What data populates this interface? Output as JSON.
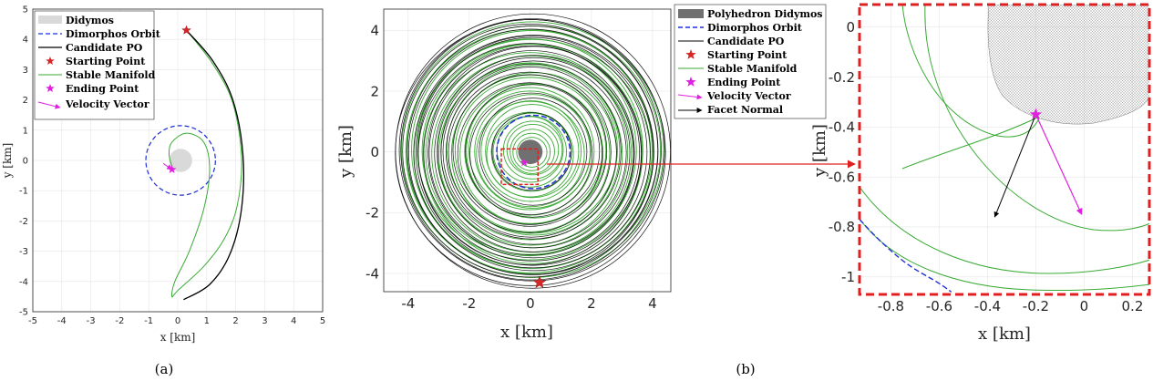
{
  "colors": {
    "didymos": "#d9d9d9",
    "polyhedron": "#707070",
    "dimorphos_orbit": "#1f2fd8",
    "candidate_po": "#000000",
    "starting_point": "#d62728",
    "stable_manifold": "#3aaa35",
    "ending_point": "#e020e0",
    "velocity_vector": "#e020e0",
    "facet_normal": "#000000",
    "zoom_box": "#e02020"
  },
  "captions": {
    "a": "(a)",
    "b": "(b)"
  },
  "chart_data": [
    {
      "type": "line",
      "panel": "a",
      "xlabel": "x [km]",
      "ylabel": "y [km]",
      "xlim": [
        -5,
        5
      ],
      "ylim": [
        -5,
        5
      ],
      "xticks": [
        -5,
        -4,
        -3,
        -2,
        -1,
        0,
        1,
        2,
        3,
        4,
        5
      ],
      "yticks": [
        -5,
        -4,
        -3,
        -2,
        -1,
        0,
        1,
        2,
        3,
        4,
        5
      ],
      "grid": true,
      "legend_position": "top-left",
      "legend": [
        "Didymos",
        "Dimorphos Orbit",
        "Candidate PO",
        "Starting Point",
        "Stable Manifold",
        "Ending Point",
        "Velocity Vector"
      ],
      "didymos": {
        "center": [
          0.1,
          0.0
        ],
        "radius": 0.4
      },
      "dimorphos_orbit": {
        "center": [
          0.1,
          0.0
        ],
        "radius": 1.2
      },
      "candidate_po": [
        [
          0.3,
          4.3
        ],
        [
          1.2,
          3.3
        ],
        [
          1.9,
          2.0
        ],
        [
          2.25,
          0.2
        ],
        [
          2.2,
          -1.6
        ],
        [
          1.8,
          -3.1
        ],
        [
          1.1,
          -4.1
        ],
        [
          0.2,
          -4.6
        ]
      ],
      "stable_manifold": [
        [
          0.3,
          4.3
        ],
        [
          1.2,
          3.2
        ],
        [
          1.9,
          1.9
        ],
        [
          2.2,
          0.1
        ],
        [
          2.05,
          -1.5
        ],
        [
          1.6,
          -2.6
        ],
        [
          0.9,
          -3.5
        ],
        [
          0.0,
          -4.3
        ],
        [
          -0.2,
          -4.5
        ],
        [
          -0.1,
          -4.0
        ],
        [
          0.4,
          -3.0
        ],
        [
          0.9,
          -1.6
        ],
        [
          1.1,
          -0.3
        ],
        [
          0.9,
          0.6
        ],
        [
          0.3,
          0.9
        ],
        [
          -0.2,
          0.6
        ],
        [
          -0.3,
          0.2
        ],
        [
          -0.2,
          -0.2
        ],
        [
          -0.2,
          -0.3
        ]
      ],
      "starting_point": [
        0.3,
        4.3
      ],
      "ending_point": [
        -0.2,
        -0.3
      ],
      "velocity_vector": {
        "from": [
          -0.5,
          -0.1
        ],
        "to": [
          -0.2,
          -0.3
        ]
      }
    },
    {
      "type": "line",
      "panel": "b",
      "xlabel": "x [km]",
      "ylabel": "y [km]",
      "xlim": [
        -4.8,
        4.6
      ],
      "ylim": [
        -4.6,
        4.7
      ],
      "xticks": [
        -4,
        -2,
        0,
        2,
        4
      ],
      "yticks": [
        -4,
        -2,
        0,
        2,
        4
      ],
      "grid": true,
      "legend_position": "top-right",
      "legend": [
        "Polyhedron Didymos",
        "Dimorphos Orbit",
        "Candidate PO",
        "Starting Point",
        "Stable Manifold",
        "Ending Point",
        "Velocity Vector",
        "Facet Normal"
      ],
      "didymos": {
        "center": [
          0.0,
          0.0
        ],
        "radius": 0.4
      },
      "dimorphos_orbit": {
        "center": [
          0.1,
          0.0
        ],
        "radius": 1.2
      },
      "candidate_po_radius_range": [
        1.3,
        4.5
      ],
      "stable_manifold_radius_range": [
        0.5,
        4.3
      ],
      "starting_point": [
        0.3,
        -4.3
      ],
      "ending_point": [
        -0.2,
        -0.35
      ],
      "zoom_box": {
        "x": [
          -0.95,
          0.25
        ],
        "y": [
          -1.07,
          0.1
        ]
      }
    },
    {
      "type": "line",
      "panel": "b-zoom",
      "xlabel": "x [km]",
      "ylabel": "y [km]",
      "xlim": [
        -0.93,
        0.27
      ],
      "ylim": [
        -1.07,
        0.09
      ],
      "xticks": [
        -0.8,
        -0.6,
        -0.4,
        -0.2,
        0,
        0.2
      ],
      "yticks": [
        -1,
        -0.8,
        -0.6,
        -0.4,
        -0.2,
        0
      ],
      "grid": true,
      "ending_point": [
        -0.2,
        -0.35
      ],
      "velocity_vector": {
        "from": [
          -0.2,
          -0.35
        ],
        "to": [
          -0.01,
          -0.75
        ]
      },
      "facet_normal": {
        "from": [
          -0.2,
          -0.35
        ],
        "to": [
          -0.37,
          -0.76
        ]
      },
      "dimorphos_orbit_segment": [
        [
          -0.93,
          -0.77
        ],
        [
          -0.84,
          -0.86
        ],
        [
          -0.73,
          -0.95
        ],
        [
          -0.61,
          -1.02
        ],
        [
          -0.55,
          -1.06
        ]
      ]
    }
  ]
}
